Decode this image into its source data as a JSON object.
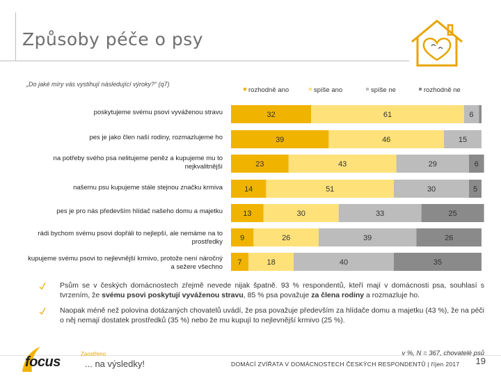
{
  "header": {
    "title": "Způsoby péče o psy",
    "question": "„Do jaké míry vás vystihují následující výroky?“ (q7)"
  },
  "legend": [
    {
      "label": "rozhodně ano",
      "color": "#f0b400"
    },
    {
      "label": "spíše ano",
      "color": "#ffe17a"
    },
    {
      "label": "spíše ne",
      "color": "#bcbcbc"
    },
    {
      "label": "rozhodně ne",
      "color": "#8a8a8a"
    }
  ],
  "chart_data": {
    "type": "bar",
    "orientation": "horizontal",
    "stacked": true,
    "unit": "%",
    "categories": [
      "poskytujeme svému psovi vyváženou stravu",
      "pes je jako člen naší rodiny, rozmazlujeme ho",
      "na potřeby svého psa nelitujeme peněz a kupujeme mu to nejkvalitnější",
      "našemu psu kupujeme stále stejnou značku krmiva",
      "pes je pro nás především hlídač našeho domu a majetku",
      "rádi bychom svému psovi dopřáli to nejlepší, ale nemáme na to prostředky",
      "kupujeme svému psovi to nejlevnější krmivo, protože není náročný a sežere všechno"
    ],
    "series": [
      {
        "name": "rozhodně ano",
        "values": [
          32,
          39,
          23,
          14,
          13,
          9,
          7
        ]
      },
      {
        "name": "spíše ano",
        "values": [
          61,
          46,
          43,
          51,
          30,
          26,
          18
        ]
      },
      {
        "name": "spíše ne",
        "values": [
          6,
          15,
          29,
          30,
          33,
          39,
          40
        ]
      },
      {
        "name": "rozhodně ne",
        "values": [
          1,
          0,
          6,
          5,
          25,
          26,
          35
        ]
      }
    ],
    "value_labels": [
      [
        "32",
        "61",
        "6",
        ""
      ],
      [
        "39",
        "46",
        "15",
        ""
      ],
      [
        "23",
        "43",
        "29",
        "6"
      ],
      [
        "14",
        "51",
        "30",
        "5"
      ],
      [
        "13",
        "30",
        "33",
        "25"
      ],
      [
        "9",
        "26",
        "39",
        "26"
      ],
      [
        "7",
        "18",
        "40",
        "35"
      ]
    ],
    "xlim": [
      0,
      100
    ]
  },
  "bullets": [
    {
      "parts": [
        {
          "text": "Psům se v českých domácnostech zřejmě nevede nijak špatně. 93 % respondentů, kteří mají v domácnosti psa, souhlasí s tvrzením, že ",
          "bold": false
        },
        {
          "text": "svému psovi poskytují vyváženou stravu",
          "bold": true
        },
        {
          "text": ", 85 % psa považuje ",
          "bold": false
        },
        {
          "text": "za člena rodiny",
          "bold": true
        },
        {
          "text": " a rozmazluje ho.",
          "bold": false
        }
      ]
    },
    {
      "parts": [
        {
          "text": "Naopak méně než polovina dotázaných chovatelů uvádí, že psa považuje především za hlídače domu a majetku (43 %), že na péči o něj nemají dostatek prostředků (35 %) nebo že mu kupují to nejlevnější krmivo (25 %).",
          "bold": false
        }
      ]
    }
  ],
  "footer": {
    "note": "v %, N = 367, chovatelé psů",
    "text": "DOMÁCÍ ZVÍŘATA V DOMÁCNOSTECH ČESKÝCH RESPONDENTŮ | říjen 2017",
    "page_number": "19",
    "brand": "focus",
    "tagline_small": "Zaostřeno",
    "tagline_big": "... na výsledky!"
  }
}
